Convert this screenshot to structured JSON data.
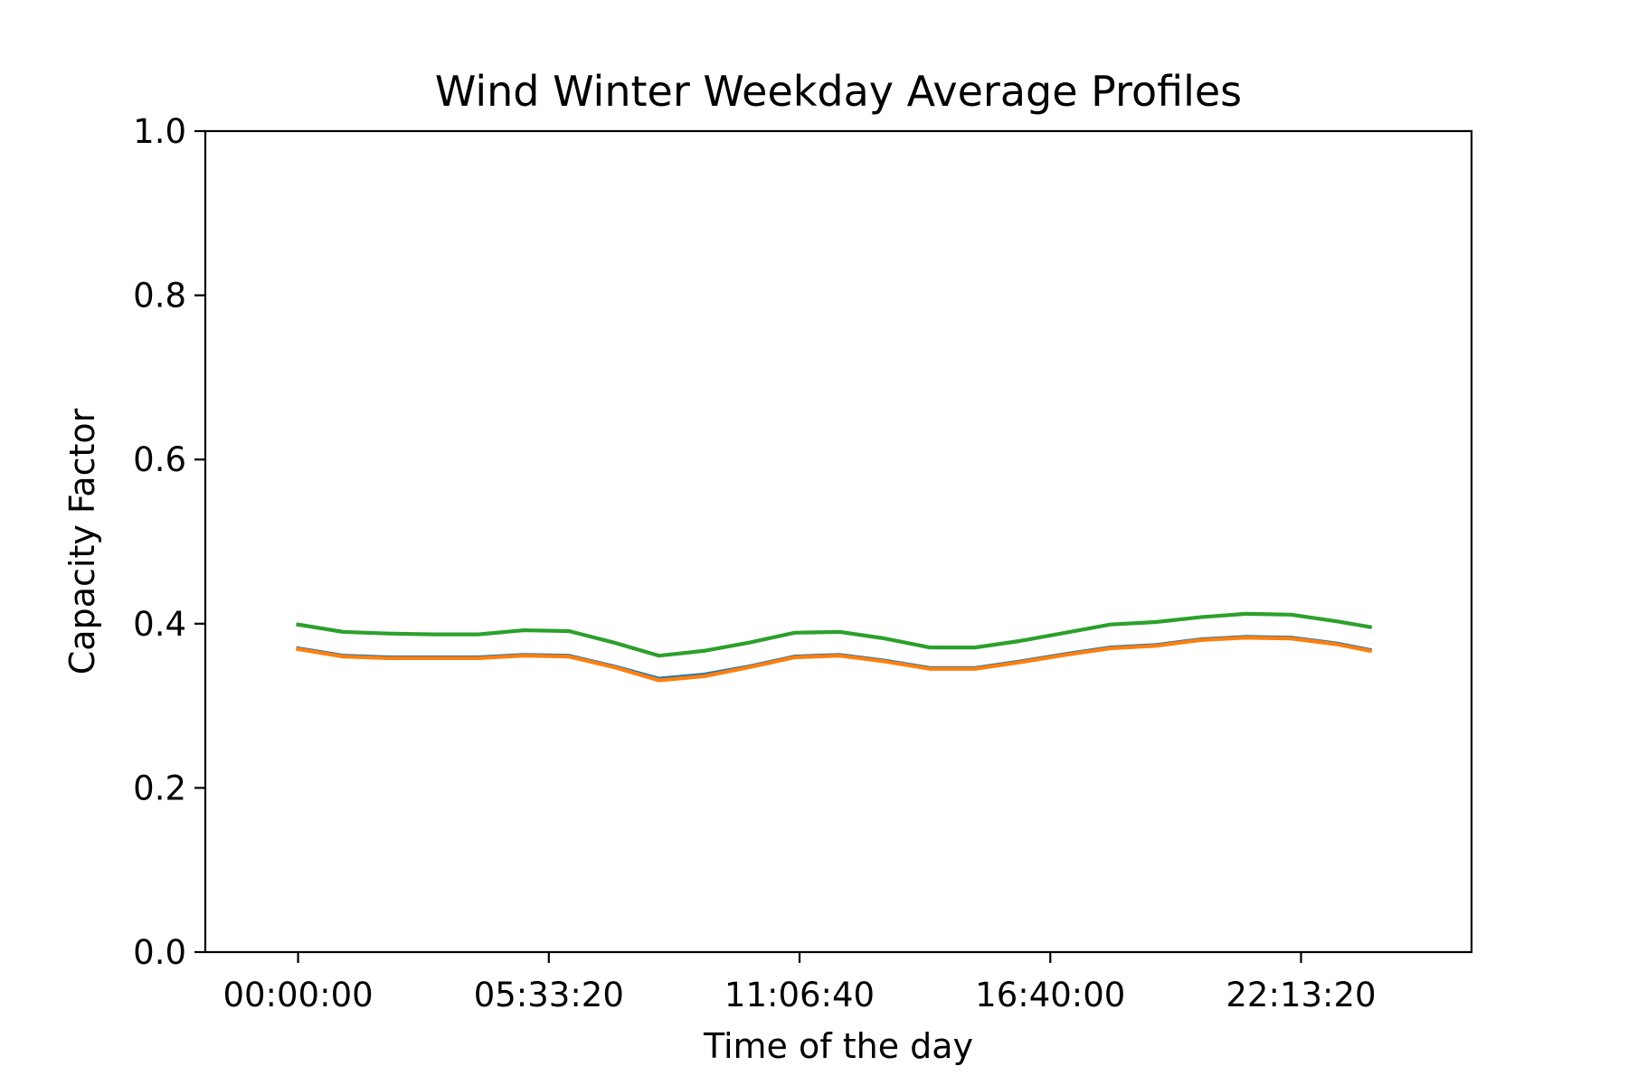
{
  "chart_data": {
    "type": "line",
    "title": "Wind Winter Weekday Average Profiles",
    "xlabel": "Time of the day",
    "ylabel": "Capacity Factor",
    "ylim": [
      0,
      1
    ],
    "xlim_seconds": [
      -7400,
      93600
    ],
    "yticks": [
      "0.0",
      "0.2",
      "0.4",
      "0.6",
      "0.8",
      "1.0"
    ],
    "xticks": [
      "00:00:00",
      "05:33:20",
      "11:06:40",
      "16:40:00",
      "22:13:20"
    ],
    "x": [
      "00:00",
      "01:00",
      "02:00",
      "03:00",
      "04:00",
      "05:00",
      "06:00",
      "07:00",
      "08:00",
      "09:00",
      "10:00",
      "11:00",
      "12:00",
      "13:00",
      "14:00",
      "15:00",
      "16:00",
      "17:00",
      "18:00",
      "19:00",
      "20:00",
      "21:00",
      "22:00",
      "23:00",
      "23:45"
    ],
    "grid": false,
    "series": [
      {
        "color": "#1f77b4",
        "values": [
          0.37,
          0.361,
          0.359,
          0.359,
          0.359,
          0.362,
          0.361,
          0.348,
          0.333,
          0.338,
          0.348,
          0.36,
          0.362,
          0.355,
          0.346,
          0.346,
          0.354,
          0.363,
          0.371,
          0.374,
          0.381,
          0.384,
          0.383,
          0.376,
          0.368
        ]
      },
      {
        "color": "#ff7f0e",
        "values": [
          0.369,
          0.36,
          0.358,
          0.358,
          0.358,
          0.361,
          0.36,
          0.347,
          0.331,
          0.336,
          0.347,
          0.359,
          0.361,
          0.354,
          0.345,
          0.345,
          0.353,
          0.362,
          0.37,
          0.373,
          0.38,
          0.383,
          0.382,
          0.375,
          0.367
        ]
      },
      {
        "color": "#2ca02c",
        "values": [
          0.399,
          0.39,
          0.388,
          0.387,
          0.387,
          0.392,
          0.391,
          0.377,
          0.361,
          0.367,
          0.377,
          0.389,
          0.39,
          0.382,
          0.371,
          0.371,
          0.379,
          0.389,
          0.399,
          0.402,
          0.408,
          0.412,
          0.411,
          0.403,
          0.396
        ]
      }
    ]
  }
}
